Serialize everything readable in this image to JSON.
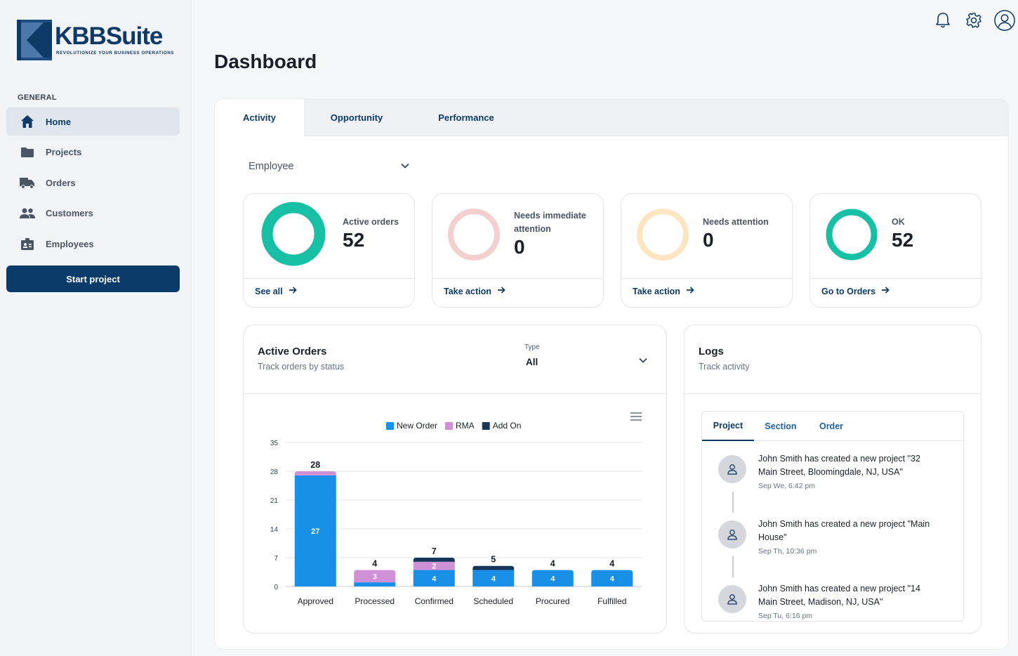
{
  "brand": {
    "name": "KBBSuite",
    "tagline": "REVOLUTIONIZE YOUR BUSINESS OPERATIONS"
  },
  "sidebar": {
    "section": "GENERAL",
    "items": [
      {
        "label": "Home",
        "icon": "home-icon",
        "active": true
      },
      {
        "label": "Projects",
        "icon": "folder-icon"
      },
      {
        "label": "Orders",
        "icon": "truck-icon"
      },
      {
        "label": "Customers",
        "icon": "users-icon"
      },
      {
        "label": "Employees",
        "icon": "badge-icon"
      }
    ],
    "cta": "Start project"
  },
  "header": {
    "title": "Dashboard"
  },
  "tabs": [
    {
      "label": "Activity",
      "active": true
    },
    {
      "label": "Opportunity"
    },
    {
      "label": "Performance"
    }
  ],
  "filter": {
    "value": "Employee"
  },
  "cards": [
    {
      "caption": "Active orders",
      "value": "52",
      "link": "See all",
      "color": "#17bfa4"
    },
    {
      "caption": "Needs immediate attention",
      "value": "0",
      "link": "Take action",
      "color": "#f4cfcf"
    },
    {
      "caption": "Needs attention",
      "value": "0",
      "link": "Take action",
      "color": "#fde5c2"
    },
    {
      "caption": "OK",
      "value": "52",
      "link": "Go to Orders",
      "color": "#17bfa4"
    }
  ],
  "orders": {
    "title": "Active Orders",
    "subtitle": "Track orders by status",
    "type_label": "Type",
    "type_value": "All"
  },
  "chart_data": {
    "type": "bar",
    "stacked": true,
    "categories": [
      "Approved",
      "Processed",
      "Confirmed",
      "Scheduled",
      "Procured",
      "Fulfilled"
    ],
    "series": [
      {
        "name": "New Order",
        "color": "#1a8fe8",
        "values": [
          27,
          1,
          4,
          4,
          4,
          4
        ]
      },
      {
        "name": "RMA",
        "color": "#d090d6",
        "values": [
          1,
          3,
          2,
          0,
          0,
          0
        ]
      },
      {
        "name": "Add On",
        "color": "#16375a",
        "values": [
          0,
          0,
          1,
          1,
          0,
          0
        ]
      }
    ],
    "totals": [
      28,
      4,
      7,
      5,
      4,
      4
    ],
    "segment_labels": [
      {
        "series": 0,
        "index": 0,
        "text": "27"
      },
      {
        "series": 1,
        "index": 1,
        "text": "3"
      },
      {
        "series": 0,
        "index": 2,
        "text": "4"
      },
      {
        "series": 1,
        "index": 2,
        "text": "2"
      },
      {
        "series": 0,
        "index": 3,
        "text": "4"
      },
      {
        "series": 0,
        "index": 4,
        "text": "4"
      },
      {
        "series": 0,
        "index": 5,
        "text": "4"
      }
    ],
    "yticks": [
      0,
      7,
      14,
      21,
      28,
      35
    ],
    "ylim": [
      0,
      35
    ],
    "legend": "top-center",
    "grid": true
  },
  "logs": {
    "title": "Logs",
    "subtitle": "Track activity",
    "tabs": [
      {
        "label": "Project",
        "active": true
      },
      {
        "label": "Section"
      },
      {
        "label": "Order"
      }
    ],
    "entries": [
      {
        "text": "John Smith has created a new project \"32 Main Street, Bloomingdale, NJ, USA\"",
        "time": "Sep We, 6:42 pm"
      },
      {
        "text": "John Smith has created a new project \"Main House\"",
        "time": "Sep Th, 10:36 pm"
      },
      {
        "text": "John Smith has created a new project \"14 Main Street, Madison, NJ, USA\"",
        "time": "Sep Tu, 6:16 pm"
      }
    ]
  }
}
